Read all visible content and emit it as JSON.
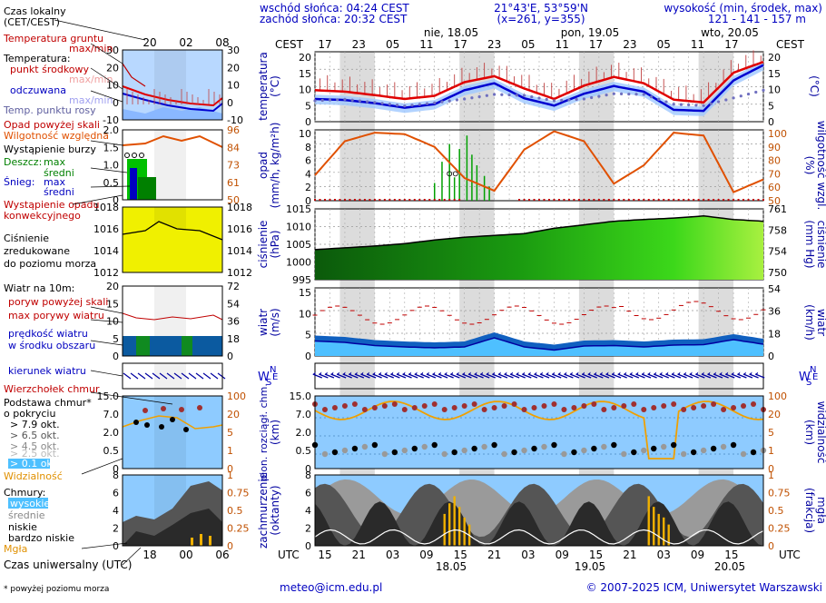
{
  "header": {
    "sunrise": "wschód słońca: 04:24 CEST",
    "sunset": "zachód słońca: 20:32 CEST",
    "coords": "21°43'E, 53°59'N",
    "grid": "(x=261, y=355)",
    "elevation_title": "wysokość (min, środek, max)",
    "elevation": "121 - 141 - 157 m",
    "local_time_title": "Czas lokalny",
    "local_time_zone": "(CET/CEST)",
    "tz": "CEST",
    "tz_utc": "UTC",
    "days": [
      "nie, 18.05",
      "pon, 19.05",
      "wto, 20.05"
    ],
    "legend_hours": [
      "20",
      "02",
      "08"
    ],
    "legend_hours_bottom": [
      "18",
      "00",
      "06"
    ],
    "main_hours_top": [
      "17",
      "23",
      "05",
      "11",
      "17",
      "23",
      "05",
      "11",
      "17",
      "23",
      "05",
      "11",
      "17"
    ],
    "main_hours_bottom": [
      "15",
      "21",
      "03",
      "09",
      "15",
      "21",
      "03",
      "09",
      "15",
      "21",
      "03",
      "09",
      "15"
    ],
    "bottom_dates": [
      "18.05",
      "19.05",
      "20.05"
    ]
  },
  "legend": {
    "temperature": {
      "soil_title": "Temperatura gruntu",
      "soil_sub": "max/min",
      "title": "Temperatura:",
      "mid": "punkt środkowy",
      "mid_sub": "max/min",
      "perceived": "odczuwana",
      "perceived_sub": "max/min",
      "dew": "Temp. punktu rosy",
      "ticks_left": [
        "30",
        "20",
        "10",
        "0",
        "-10"
      ],
      "ticks_right": [
        "30",
        "20",
        "10",
        "0",
        "-10"
      ]
    },
    "precip": {
      "above": "Opad powyżej skali",
      "humidity": "Wilgotność względna",
      "storm": "Wystąpienie burzy",
      "rain_label": "Deszcz:",
      "rain_max": "max",
      "rain_mean": "średni",
      "snow_label": "Śnieg:",
      "snow_max": "max",
      "snow_mean": "średni",
      "occurrence_1": "Wystąpienie opadu",
      "occurrence_2": "konwekcyjnego",
      "ticks_left": [
        "2.0",
        "1.5",
        "1.0",
        "0.5",
        "0"
      ],
      "ticks_right": [
        "96",
        "84",
        "73",
        "61",
        "50"
      ]
    },
    "pressure": {
      "line1": "Ciśnienie",
      "line2": "zredukowane",
      "line3": "do poziomu morza",
      "ticks_left": [
        "1018",
        "1016",
        "1014",
        "1012"
      ],
      "ticks_right": [
        "1018",
        "1016",
        "1014",
        "1012"
      ]
    },
    "wind": {
      "title": "Wiatr na 10m:",
      "gust_above": "poryw powyżej skali",
      "gust_max": "max porywy wiatru",
      "speed_1": "prędkość wiatru",
      "speed_2": "w środku obszaru",
      "ticks_left": [
        "20",
        "15",
        "10",
        "5",
        "0"
      ],
      "ticks_right": [
        "72",
        "54",
        "36",
        "18",
        "0"
      ]
    },
    "wind_dir": {
      "title": "kierunek wiatru"
    },
    "clouds": {
      "top": "Wierzchołek chmur",
      "base_1": "Podstawa chmur*",
      "base_2": "o pokryciu",
      "okt": [
        "> 7.9 okt.",
        "> 6.5 okt.",
        "> 4.5 okt.",
        "> 2.5 okt.",
        "> 0.1 okt."
      ],
      "visibility": "Widzialność",
      "ticks_left": [
        "15.0",
        "7.0",
        "2.0",
        "0.5",
        "0"
      ],
      "ticks_right": [
        "100",
        "20",
        "5",
        "1",
        "0"
      ]
    },
    "cover": {
      "title": "Chmury:",
      "high": "wysokie",
      "mid": "średnie",
      "low": "niskie",
      "very_low": "bardzo niskie",
      "fog": "Mgła",
      "ticks_left": [
        "8",
        "6",
        "4",
        "2",
        "0"
      ],
      "ticks_right": [
        "1",
        "0.75",
        "0.5",
        "0.25",
        "0"
      ]
    },
    "utc_label": "Czas uniwersalny (UTC)",
    "footnote": "* powyżej poziomu morza"
  },
  "panels": {
    "temperature": {
      "label_left_1": "temperatura",
      "label_left_2": "(°C)",
      "label_right": "(°C)",
      "ticks_left": [
        "20",
        "15",
        "10",
        "5",
        "0"
      ],
      "ticks_right": [
        "20",
        "15",
        "10",
        "5",
        "0"
      ]
    },
    "precip": {
      "label_left_1": "opad",
      "label_left_2": "(mm/h, kg/m²h)",
      "label_right_1": "(%)",
      "label_right_2": "wilgotność wzgl.",
      "ticks_left": [
        "10",
        "8",
        "6",
        "4",
        "2",
        "0"
      ],
      "ticks_right": [
        "100",
        "90",
        "80",
        "70",
        "60",
        "50"
      ]
    },
    "pressure": {
      "label_left_1": "ciśnienie",
      "label_left_2": "(hPa)",
      "label_right_1": "(mm Hg)",
      "label_right_2": "ciśnienie",
      "ticks_left": [
        "1015",
        "1010",
        "1005",
        "1000",
        "995"
      ],
      "ticks_right": [
        "761",
        "758",
        "754",
        "750"
      ]
    },
    "wind": {
      "label_left_1": "wiatr",
      "label_left_2": "(m/s)",
      "label_right_1": "(km/h)",
      "label_right_2": "wiatr",
      "ticks_left": [
        "15",
        "10",
        "5",
        "0"
      ],
      "ticks_right": [
        "54",
        "36",
        "18",
        "0"
      ]
    },
    "compass": {
      "n": "N",
      "w": "W",
      "s": "S",
      "e": "E"
    },
    "clouds": {
      "label_left_1": "pion. rozciągł. chm.",
      "label_left_2": "(km)",
      "label_right_1": "(km)",
      "label_right_2": "widzialność",
      "ticks_left": [
        "15.0",
        "7.0",
        "2.0",
        "0.5",
        "0"
      ],
      "ticks_right": [
        "100",
        "20",
        "5",
        "1",
        "0"
      ]
    },
    "cover": {
      "label_left_1": "zachmurzenie",
      "label_left_2": "(oktanty)",
      "label_right_1": "(frakcja)",
      "label_right_2": "mgła",
      "ticks_left": [
        "8",
        "6",
        "4",
        "2",
        "0"
      ],
      "ticks_right": [
        "1",
        "0.75",
        "0.5",
        "0.25",
        "0"
      ]
    }
  },
  "footer": {
    "email": "meteo@icm.edu.pl",
    "copyright": "© 2007-2025 ICM, Uniwersytet Warszawski"
  },
  "colors": {
    "night_band": "#d8d8d8",
    "temp_red": "#e00000",
    "temp_blue": "#0000d0",
    "humidity": "#e05000",
    "pressure_fill": "#33cc00",
    "wind_blue": "#22aaff",
    "sky": "#8ecbff"
  },
  "chart_data": [
    {
      "type": "line",
      "title": "temperatura (°C)",
      "ylim": [
        0,
        20
      ],
      "x": [
        0,
        6,
        12,
        18,
        24,
        30,
        36,
        42,
        48,
        54,
        60,
        66,
        72,
        78,
        84,
        90
      ],
      "series": [
        {
          "name": "temperatura",
          "values": [
            9.0,
            8.6,
            7.6,
            6.5,
            7.4,
            11.3,
            13.0,
            9.5,
            6.5,
            10.3,
            12.8,
            11.0,
            6.3,
            5.5,
            14.0,
            17.1
          ]
        },
        {
          "name": "odczuwana",
          "values": [
            6.5,
            6.2,
            5.3,
            4.0,
            5.0,
            9.0,
            11.0,
            6.7,
            4.6,
            8.0,
            10.2,
            8.6,
            3.4,
            3.1,
            11.8,
            16.2
          ]
        },
        {
          "name": "punkt rosy",
          "values": [
            6.0,
            6.4,
            5.5,
            4.5,
            5.4,
            6.5,
            7.8,
            7.5,
            6.0,
            6.5,
            8.0,
            7.8,
            5.0,
            4.6,
            6.8,
            9.0
          ]
        }
      ]
    },
    {
      "type": "line",
      "title": "wilgotność względna (%)",
      "ylim": [
        50,
        100
      ],
      "x": [
        0,
        6,
        12,
        18,
        24,
        30,
        36,
        42,
        48,
        54,
        60,
        66,
        72,
        78,
        84,
        90
      ],
      "series": [
        {
          "name": "wilgotność",
          "values": [
            68,
            92,
            98,
            97,
            88,
            66,
            57,
            86,
            99,
            92,
            62,
            75,
            98,
            96,
            56,
            65
          ]
        }
      ]
    },
    {
      "type": "area",
      "title": "ciśnienie (hPa)",
      "ylim": [
        995,
        1015
      ],
      "x": [
        0,
        6,
        12,
        18,
        24,
        30,
        36,
        42,
        48,
        54,
        60,
        66,
        72,
        78,
        84,
        90
      ],
      "series": [
        {
          "name": "ciśnienie",
          "values": [
            1003.5,
            1004.0,
            1004.5,
            1005.2,
            1006.2,
            1007.0,
            1007.5,
            1008.0,
            1009.5,
            1010.5,
            1011.5,
            1012.0,
            1012.4,
            1013.0,
            1012.0,
            1011.5
          ]
        }
      ]
    },
    {
      "type": "area",
      "title": "wiatr (m/s)",
      "ylim": [
        0,
        15
      ],
      "x": [
        0,
        6,
        12,
        18,
        24,
        30,
        36,
        42,
        48,
        54,
        60,
        66,
        72,
        78,
        84,
        90
      ],
      "series": [
        {
          "name": "prędkość wiatru",
          "values": [
            3.3,
            3.0,
            2.3,
            2.0,
            1.8,
            2.0,
            4.0,
            2.0,
            1.3,
            2.2,
            2.3,
            2.0,
            2.4,
            2.5,
            3.6,
            2.6
          ]
        }
      ]
    }
  ]
}
